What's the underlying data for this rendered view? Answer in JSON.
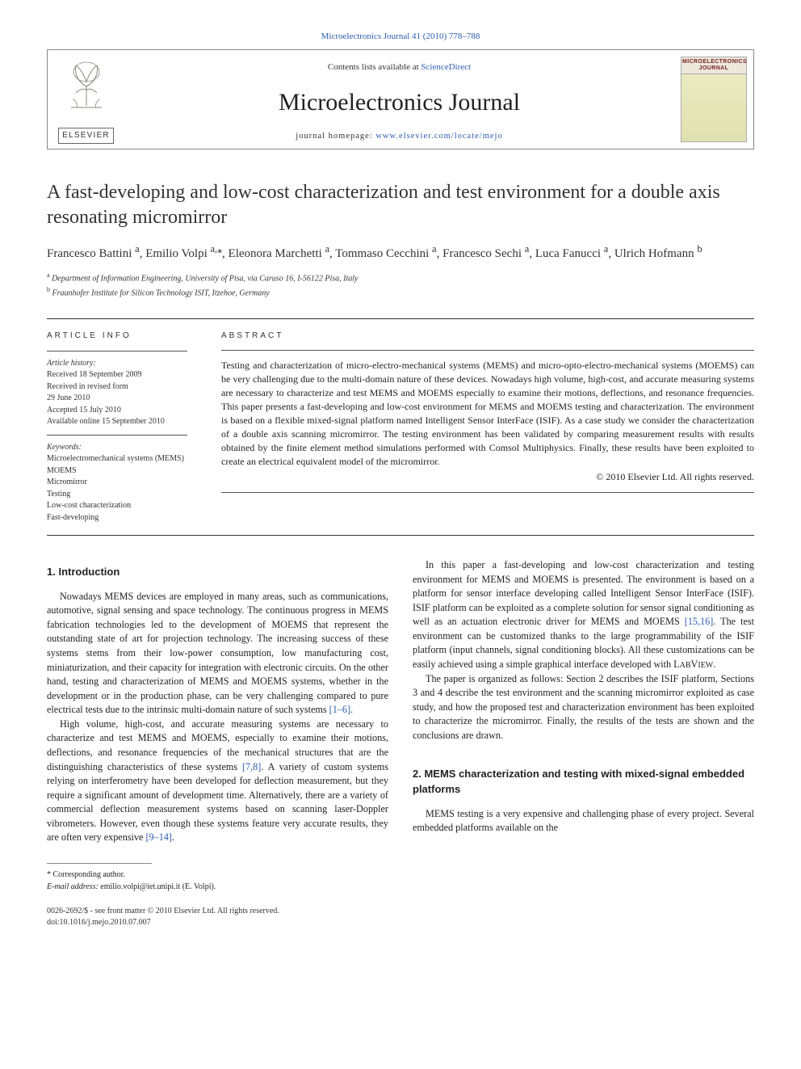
{
  "journal_ref": {
    "prefix": "Microelectronics Journal 41 (2010) 778–788",
    "link_text": "Microelectronics Journal 41 (2010) 778–788"
  },
  "header": {
    "contents_prefix": "Contents lists available at ",
    "contents_link": "ScienceDirect",
    "journal_title": "Microelectronics Journal",
    "homepage_prefix": "journal homepage: ",
    "homepage_link": "www.elsevier.com/locate/mejo",
    "publisher_word": "ELSEVIER",
    "cover_label_1": "MICROELECTRONICS",
    "cover_label_2": "JOURNAL"
  },
  "article": {
    "title": "A fast-developing and low-cost characterization and test environment for a double axis resonating micromirror",
    "authors_html": "Francesco Battini <sup>a</sup>, Emilio Volpi <sup>a,</sup><span class='ast'>*</span>, Eleonora Marchetti <sup>a</sup>, Tommaso Cecchini <sup>a</sup>, Francesco Sechi <sup>a</sup>, Luca Fanucci <sup>a</sup>, Ulrich Hofmann <sup>b</sup>",
    "affiliations": [
      {
        "sup": "a",
        "text": "Department of Information Engineering, University of Pisa, via Caruso 16, I-56122 Pisa, Italy"
      },
      {
        "sup": "b",
        "text": "Fraunhofer Institute for Silicon Technology ISIT, Itzehoe, Germany"
      }
    ]
  },
  "meta": {
    "info_head": "ARTICLE INFO",
    "history_head": "Article history:",
    "history": [
      "Received 18 September 2009",
      "Received in revised form",
      "29 June 2010",
      "Accepted 15 July 2010",
      "Available online 15 September 2010"
    ],
    "keywords_head": "Keywords:",
    "keywords": [
      "Microelectromechanical systems (MEMS)",
      "MOEMS",
      "Micromirror",
      "Testing",
      "Low-cost characterization",
      "Fast-developing"
    ]
  },
  "abstract": {
    "head": "ABSTRACT",
    "text": "Testing and characterization of micro-electro-mechanical systems (MEMS) and micro-opto-electro-mechanical systems (MOEMS) can be very challenging due to the multi-domain nature of these devices. Nowadays high volume, high-cost, and accurate measuring systems are necessary to characterize and test MEMS and MOEMS especially to examine their motions, deflections, and resonance frequencies. This paper presents a fast-developing and low-cost environment for MEMS and MOEMS testing and characterization. The environment is based on a flexible mixed-signal platform named Intelligent Sensor InterFace (ISIF). As a case study we consider the characterization of a double axis scanning micromirror. The testing environment has been validated by comparing measurement results with results obtained by the finite element method simulations performed with Comsol Multiphysics. Finally, these results have been exploited to create an electrical equivalent model of the micromirror.",
    "copyright": "© 2010 Elsevier Ltd. All rights reserved."
  },
  "body": {
    "sec1_head": "1. Introduction",
    "sec1_p1": "Nowadays MEMS devices are employed in many areas, such as communications, automotive, signal sensing and space technology. The continuous progress in MEMS fabrication technologies led to the development of MOEMS that represent the outstanding state of art for projection technology. The increasing success of these systems stems from their low-power consumption, low manufacturing cost, miniaturization, and their capacity for integration with electronic circuits. On the other hand, testing and characterization of MEMS and MOEMS systems, whether in the development or in the production phase, can be very challenging compared to pure electrical tests due to the intrinsic multi-domain nature of such systems ",
    "sec1_p1_cite": "[1–6]",
    "sec1_p1_end": ".",
    "sec1_p2": "High volume, high-cost, and accurate measuring systems are necessary to characterize and test MEMS and MOEMS, especially to examine their motions, deflections, and resonance frequencies of the mechanical structures that are the distinguishing characteristics of these systems ",
    "sec1_p2_cite": "[7,8]",
    "sec1_p2_cont": ". A variety of custom systems relying on interferometry have been developed for deflection measurement, but they require a significant amount of development time. Alternatively, there are a variety of commercial deflection measurement systems based on scanning laser-Doppler vibrometers. However, even though these systems feature very accurate results, they are often very expensive ",
    "sec1_p2_cite2": "[9–14]",
    "sec1_p2_end": ".",
    "sec1_p3": "In this paper a fast-developing and low-cost characterization and testing environment for MEMS and MOEMS is presented. The environment is based on a platform for sensor interface developing called Intelligent Sensor InterFace (ISIF). ISIF platform can be exploited as a complete solution for sensor signal conditioning as well as an actuation electronic driver for MEMS and MOEMS ",
    "sec1_p3_cite": "[15,16]",
    "sec1_p3_cont": ". The test environment can be customized thanks to the large programmability of the ISIF platform (input channels, signal conditioning blocks). All these customizations can be easily achieved using a simple graphical interface developed with L",
    "sec1_p3_sc": "AB",
    "sec1_p3_cont2": "V",
    "sec1_p3_sc2": "IEW",
    "sec1_p3_end": ".",
    "sec1_p4": "The paper is organized as follows: Section 2 describes the ISIF platform, Sections 3 and 4 describe the test environment and the scanning micromirror exploited as case study, and how the proposed test and characterization environment has been exploited to characterize the micromirror. Finally, the results of the tests are shown and the conclusions are drawn.",
    "sec2_head": "2. MEMS characterization and testing with mixed-signal embedded platforms",
    "sec2_p1": "MEMS testing is a very expensive and challenging phase of every project. Several embedded platforms available on the"
  },
  "footnote": {
    "corr": "* Corresponding author.",
    "email_label": "E-mail address:",
    "email": "emilio.volpi@iet.unipi.it (E. Volpi)."
  },
  "bottom": {
    "line1": "0026-2692/$ - see front matter © 2010 Elsevier Ltd. All rights reserved.",
    "line2": "doi:10.1016/j.mejo.2010.07.007"
  },
  "colors": {
    "link": "#2a5db0",
    "text": "#222222",
    "rule": "#333333"
  }
}
